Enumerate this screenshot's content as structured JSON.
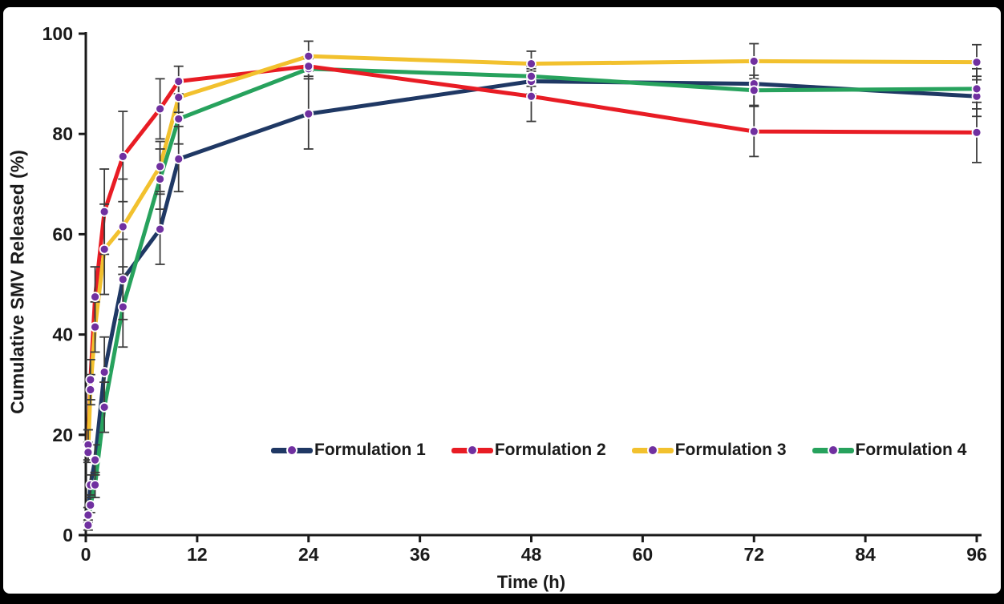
{
  "figure": {
    "frame_color": "#000000",
    "panel_color": "#ffffff",
    "axis_color": "#1a1a1a",
    "error_bar_color": "#3b3b3b",
    "marker_color": "#7030A0",
    "marker_ring_color": "#ffffff"
  },
  "chart_data": {
    "type": "line",
    "title": "",
    "xlabel": "Time (h)",
    "ylabel": "Cumulative SMV Released (%)",
    "xlim": [
      0,
      96
    ],
    "ylim": [
      0,
      100
    ],
    "grid": false,
    "legend_position": "bottom-center-inside",
    "x_ticks": [
      0,
      12,
      24,
      36,
      48,
      60,
      72,
      84,
      96
    ],
    "x_tick_labels": [
      "0",
      "12",
      "24",
      "36",
      "48",
      "60",
      "72",
      "84",
      "96"
    ],
    "y_ticks": [
      0,
      20,
      40,
      60,
      80,
      100
    ],
    "y_tick_labels": [
      "0",
      "20",
      "40",
      "60",
      "80",
      "100"
    ],
    "x": [
      0.25,
      0.5,
      1,
      2,
      4,
      8,
      10,
      24,
      48,
      72,
      96
    ],
    "series": [
      {
        "name": "Formulation 1",
        "color": "#1F3864",
        "values": [
          4,
          10,
          15,
          32.5,
          51,
          61,
          75,
          84,
          90.5,
          90,
          87.5
        ],
        "errors": [
          1.5,
          2,
          3,
          7,
          8,
          7,
          6.5,
          7,
          2.5,
          4.5,
          4
        ]
      },
      {
        "name": "Formulation 2",
        "color": "#E81C24",
        "values": [
          18,
          31,
          47.5,
          64.5,
          75.5,
          85,
          90.5,
          93.5,
          87.5,
          80.5,
          80.3
        ],
        "errors": [
          3,
          4,
          6,
          8.5,
          9,
          6,
          3,
          2,
          5,
          5,
          6
        ]
      },
      {
        "name": "Formulation 3",
        "color": "#F2C12E",
        "values": [
          16.5,
          29,
          41.5,
          57,
          61.5,
          73.5,
          87.3,
          95.5,
          94,
          94.5,
          94.3
        ],
        "errors": [
          2,
          3,
          5,
          9,
          9.5,
          5,
          3,
          3,
          2.5,
          3.5,
          3.5
        ]
      },
      {
        "name": "Formulation 4",
        "color": "#27A25D",
        "values": [
          2,
          6,
          10,
          25.5,
          45.5,
          71,
          83,
          93,
          91.5,
          88.7,
          89
        ],
        "errors": [
          1,
          1.5,
          2.5,
          5,
          8,
          6,
          5,
          2,
          2,
          3,
          4
        ]
      }
    ]
  }
}
